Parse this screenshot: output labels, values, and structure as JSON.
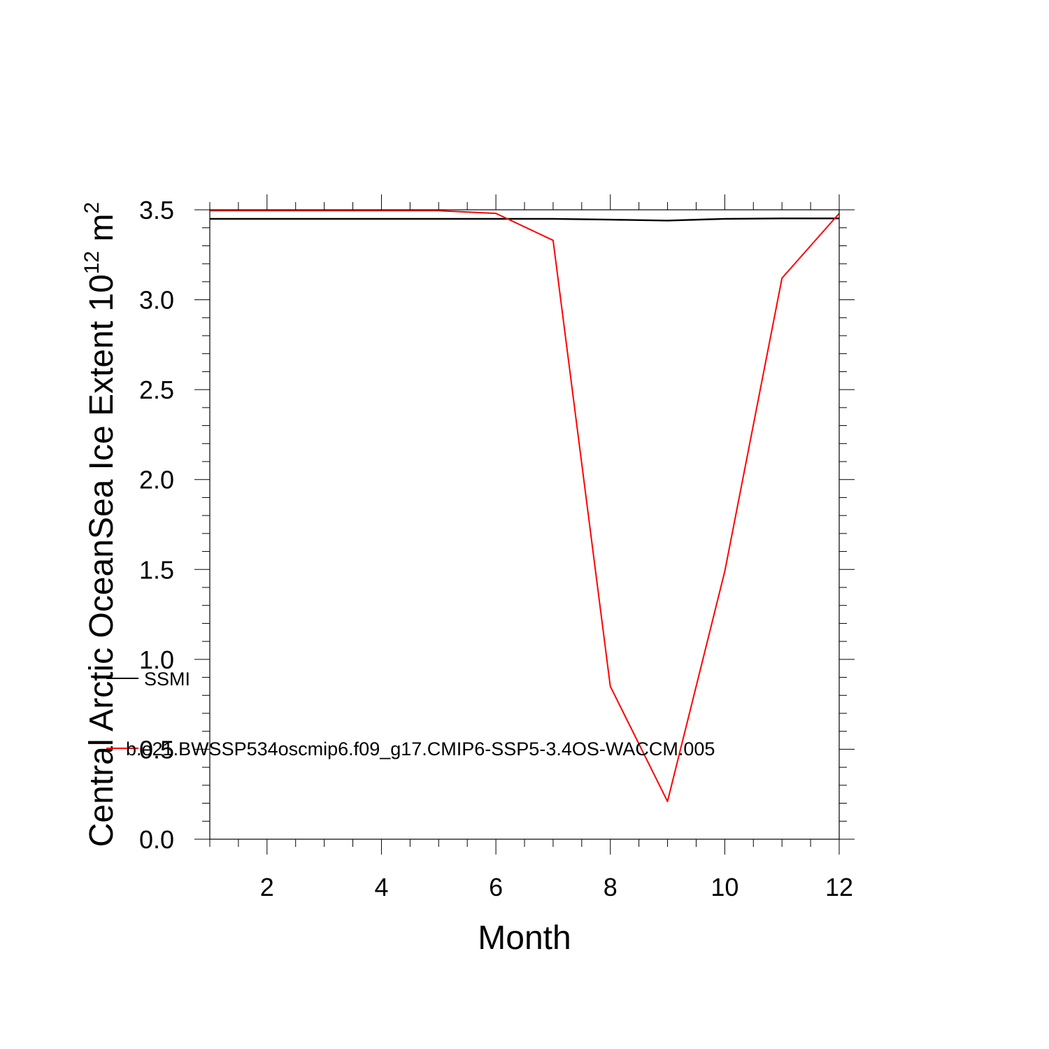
{
  "chart_data": {
    "type": "line",
    "title": "",
    "xlabel": "Month",
    "ylabel": {
      "main": "Central Arctic OceanSea Ice Extent 10",
      "exp1": "12",
      "unit": " m",
      "exp2": "2"
    },
    "xlim": [
      1,
      12
    ],
    "ylim": [
      0,
      3.5
    ],
    "xticks": [
      2,
      4,
      6,
      8,
      10,
      12
    ],
    "yticks": [
      "0.0",
      "0.5",
      "1.0",
      "1.5",
      "2.0",
      "2.5",
      "3.0",
      "3.5"
    ],
    "grid": false,
    "legend_position": "left",
    "x": [
      1,
      2,
      3,
      4,
      5,
      6,
      7,
      8,
      9,
      10,
      11,
      12
    ],
    "series": [
      {
        "name": "SSMI",
        "color": "#000000",
        "values": [
          3.45,
          3.45,
          3.45,
          3.45,
          3.45,
          3.45,
          3.45,
          3.445,
          3.44,
          3.45,
          3.452,
          3.452
        ]
      },
      {
        "name": "b.e21.BWSSP534oscmip6.f09_g17.CMIP6-SSP5-3.4OS-WACCM.005",
        "color": "#ff0000",
        "values": [
          3.495,
          3.495,
          3.495,
          3.495,
          3.495,
          3.48,
          3.33,
          0.85,
          0.21,
          1.49,
          3.12,
          3.48
        ]
      }
    ]
  }
}
